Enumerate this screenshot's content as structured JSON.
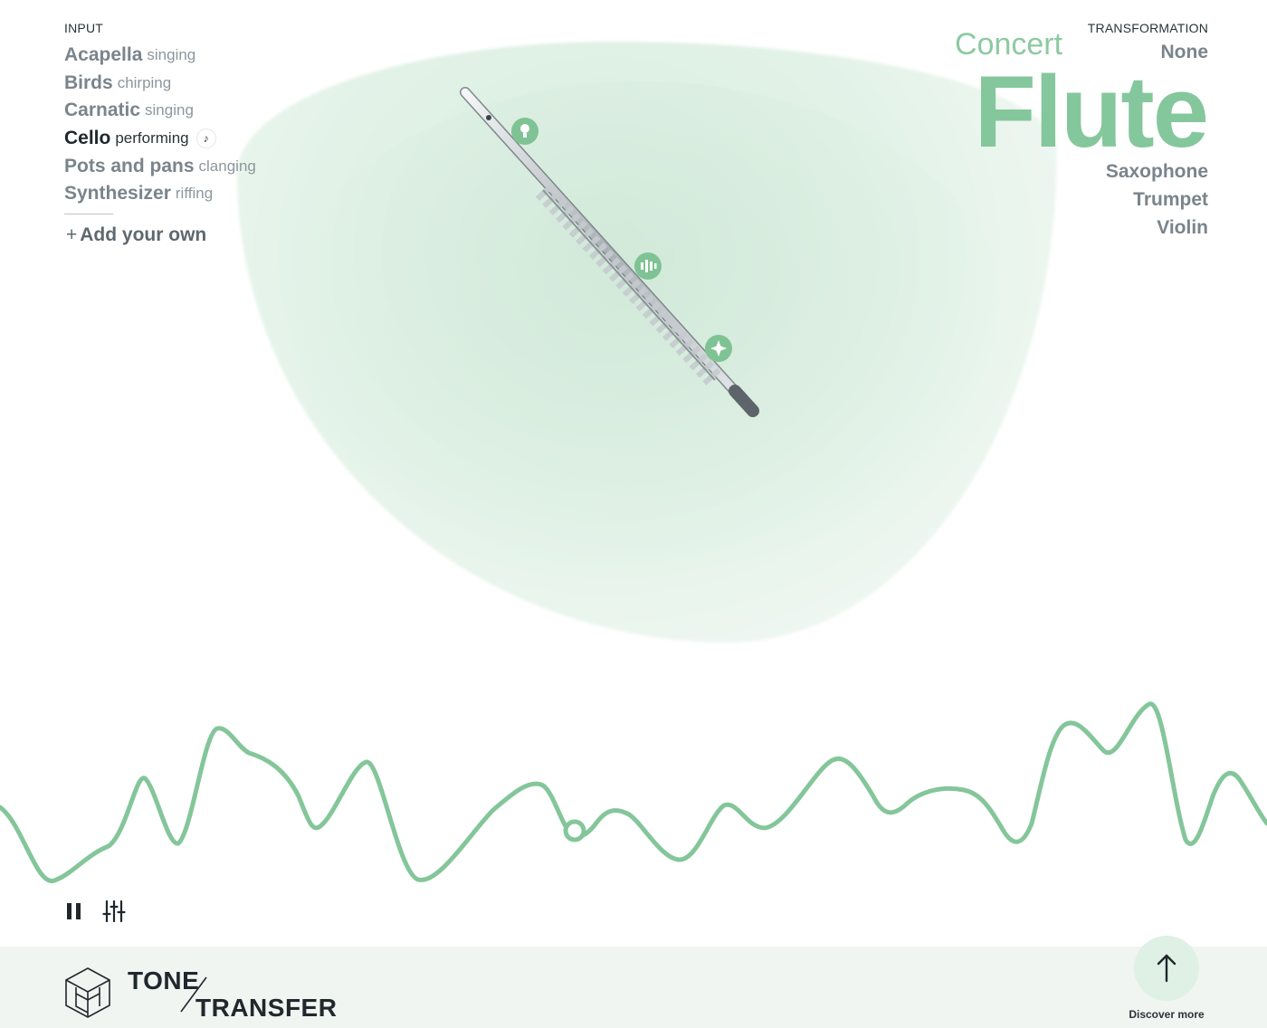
{
  "input": {
    "label": "INPUT",
    "items": [
      {
        "name": "Acapella",
        "verb": "singing",
        "active": false
      },
      {
        "name": "Birds",
        "verb": "chirping",
        "active": false
      },
      {
        "name": "Carnatic",
        "verb": "singing",
        "active": false
      },
      {
        "name": "Cello",
        "verb": "performing",
        "active": true
      },
      {
        "name": "Pots and pans",
        "verb": "clanging",
        "active": false
      },
      {
        "name": "Synthesizer",
        "verb": "riffing",
        "active": false
      }
    ],
    "note_icon": "music-note-icon",
    "add_own": "Add your own"
  },
  "transformation": {
    "label": "TRANSFORMATION",
    "options_above": [
      "None"
    ],
    "selected_prefix": "Concert",
    "selected": "Flute",
    "options_below": [
      "Saxophone",
      "Trumpet",
      "Violin"
    ]
  },
  "instrument_hotspots": [
    "lightbulb-icon",
    "waveform-icon",
    "sparkle-icon"
  ],
  "controls": {
    "pause_icon": "pause-icon",
    "mixer_icon": "sliders-icon"
  },
  "footer": {
    "brand_line1": "TONE",
    "brand_line2": "TRANSFER",
    "discover_label": "Discover more"
  },
  "colors": {
    "accent": "#85c79c",
    "wave": "#84c69a",
    "footer_bg": "#f0f5f2"
  }
}
